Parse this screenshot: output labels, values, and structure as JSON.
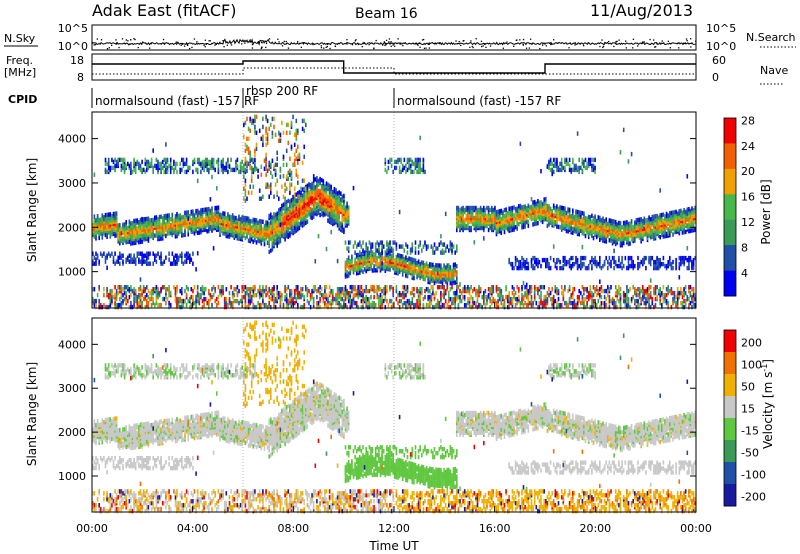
{
  "header": {
    "station": "Adak East (fitACF)",
    "beam": "Beam 16",
    "date": "11/Aug/2013"
  },
  "top_panels": {
    "nsky_label": "N.Sky",
    "nsky_ticks": [
      "10^5",
      "10^0"
    ],
    "nsearch_label": "N.Search",
    "nsearch_ticks": [
      "10^5",
      "10^0"
    ],
    "freq_label_1": "Freq.",
    "freq_label_2": "[MHz]",
    "freq_ticks": [
      "18",
      "8"
    ],
    "nave_label": "Nave",
    "nave_ticks": [
      "60",
      "0"
    ],
    "cpid_label": "CPID",
    "cpid_modes": [
      {
        "text": "normalsound (fast) -157 RF",
        "start_hour": 0
      },
      {
        "text": "rbsp 200 RF",
        "start_hour": 6
      },
      {
        "text": "normalsound (fast) -157 RF",
        "start_hour": 12
      }
    ]
  },
  "chart_data": [
    {
      "type": "heatmap",
      "title": "",
      "xlabel": "",
      "ylabel": "Slant Range [km]",
      "xlim": [
        0,
        24
      ],
      "ylim": [
        180,
        4600
      ],
      "yticks": [
        1000,
        2000,
        3000,
        4000
      ],
      "colorbar": {
        "label": "Power [dB]",
        "ticks": [
          "4",
          "8",
          "12",
          "16",
          "20",
          "24",
          "28"
        ],
        "colors": [
          "#0000f0",
          "#2050a8",
          "#3a9a58",
          "#48b848",
          "#f0a000",
          "#f06000",
          "#f00000"
        ]
      },
      "bands": [
        {
          "start_hour": 0.2,
          "end_hour": 23.9,
          "range_km": 2000,
          "note": "main ionospheric scatter band"
        },
        {
          "start_hour": 10.0,
          "end_hour": 14.5,
          "range_km": 1100,
          "note": "near-range scatter"
        },
        {
          "start_hour": 0.0,
          "end_hour": 24.0,
          "range_km": 400,
          "note": "ground/near-range clutter"
        }
      ]
    },
    {
      "type": "heatmap",
      "title": "",
      "xlabel": "Time UT",
      "ylabel": "Slant Range [km]",
      "xlim": [
        0,
        24
      ],
      "ylim": [
        180,
        4600
      ],
      "yticks": [
        1000,
        2000,
        3000,
        4000
      ],
      "xticks": [
        "00:00",
        "04:00",
        "08:00",
        "12:00",
        "16:00",
        "20:00",
        "00:00"
      ],
      "colorbar": {
        "label": "Velocity [m s^-1]",
        "ticks": [
          "200",
          "100",
          "50",
          "15",
          "-15",
          "-50",
          "-100",
          "-200"
        ],
        "colors": [
          "#1a1aa0",
          "#2050a8",
          "#3a9a58",
          "#60c840",
          "#c8c8c8",
          "#f0b000",
          "#f07000",
          "#f00000"
        ]
      }
    }
  ],
  "axis": {
    "xlabel": "Time UT",
    "xticks": [
      "00:00",
      "04:00",
      "08:00",
      "12:00",
      "16:00",
      "20:00",
      "00:00"
    ]
  },
  "colors": {
    "gray": "#c4c4c4"
  }
}
